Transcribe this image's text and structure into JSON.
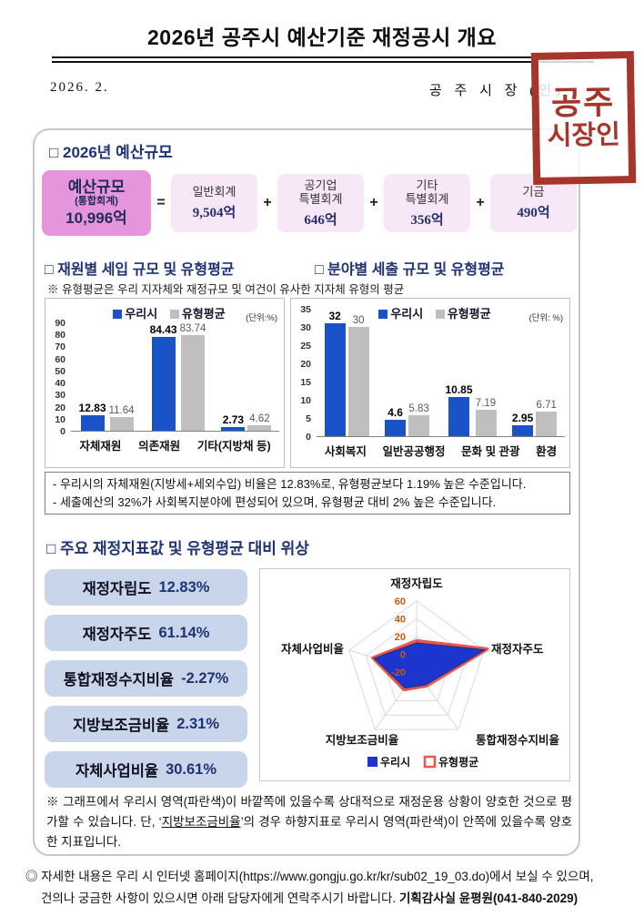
{
  "page": {
    "title": "2026년 공주시 예산기준 재정공시 개요",
    "date": "2026. 2.",
    "signature": "공 주 시 장 (인)",
    "stamp_line1": "공주",
    "stamp_line2": "시장인"
  },
  "budget": {
    "heading": "□ 2026년 예산규모",
    "total": {
      "title": "예산규모",
      "subtitle": "(통합회계)",
      "value": "10,996억"
    },
    "equals": "=",
    "plus": "+",
    "items": [
      {
        "line1": "일반회계",
        "line2": "",
        "value": "9,504억"
      },
      {
        "line1": "공기업",
        "line2": "특별회계",
        "value": "646억"
      },
      {
        "line1": "기타",
        "line2": "특별회계",
        "value": "356억"
      },
      {
        "line1": "기금",
        "line2": "",
        "value": "490억"
      }
    ]
  },
  "charts_section": {
    "left_heading": "□ 재원별 세입 규모 및 유형평균",
    "right_heading": "□ 분야별 세출 규모 및 유형평균",
    "note": "※ 유형평균은 우리 지자체와 재정규모 및 여건이 유사한 지자체 유형의 평균",
    "legend": {
      "series1": "우리시",
      "series2": "유형평균"
    },
    "unit_left": "(단위:%)",
    "unit_right": "(단위: %)"
  },
  "chart_data": [
    {
      "type": "bar",
      "title": "재원별 세입 규모 및 유형평균",
      "categories": [
        "자체재원",
        "의존재원",
        "기타(지방채 등)"
      ],
      "series": [
        {
          "name": "우리시",
          "values": [
            12.83,
            84.43,
            2.73
          ]
        },
        {
          "name": "유형평균",
          "values": [
            11.64,
            83.74,
            4.62
          ]
        }
      ],
      "ylim": [
        0,
        90
      ],
      "ytick_step": 10,
      "unit": "%",
      "grid": false,
      "legend_position": "top"
    },
    {
      "type": "bar",
      "title": "분야별 세출 규모 및 유형평균",
      "categories": [
        "사회복지",
        "일반공공행정",
        "문화 및 관광",
        "환경"
      ],
      "series": [
        {
          "name": "우리시",
          "values": [
            32,
            4.6,
            10.85,
            2.95
          ]
        },
        {
          "name": "유형평균",
          "values": [
            30,
            5.83,
            7.19,
            6.71
          ]
        }
      ],
      "ylim": [
        0,
        35
      ],
      "ytick_step": 5,
      "unit": "%",
      "grid": false,
      "legend_position": "top"
    },
    {
      "type": "radar",
      "title": "주요 재정지표값 및 유형평균 대비 위상",
      "axes": [
        "재정자립도",
        "재정자주도",
        "통합재정수지비율",
        "지방보조금비율",
        "자체사업비율"
      ],
      "series": [
        {
          "name": "우리시",
          "values": [
            12.83,
            61.14,
            -2.27,
            2.31,
            30.61
          ]
        },
        {
          "name": "유형평균",
          "values": [
            15,
            63.5,
            -1,
            4.2,
            31.5
          ],
          "estimated": true
        }
      ],
      "rlim": [
        -20,
        60
      ],
      "tick_step": 20,
      "tick_labels": [
        60,
        40,
        20,
        0,
        -20
      ]
    }
  ],
  "findings": {
    "line1": "- 우리시의 자체재원(지방세+세외수입) 비율은 12.83%로, 유형평균보다 1.19% 높은 수준입니다.",
    "line2": "- 세출예산의 32%가 사회복지분야에 편성되어 있으며, 유형평균 대비 2% 높은 수준입니다."
  },
  "indicators": {
    "heading": "□ 주요 재정지표값 및 유형평균 대비 위상",
    "items": [
      {
        "label": "재정자립도",
        "value": "12.83%"
      },
      {
        "label": "재정자주도",
        "value": "61.14%"
      },
      {
        "label": "통합재정수지비율",
        "value": "-2.27%"
      },
      {
        "label": "지방보조금비율",
        "value": "2.31%"
      },
      {
        "label": "자체사업비율",
        "value": "30.61%"
      }
    ]
  },
  "graph_note": {
    "part1": "※ 그래프에서 우리시 영역(파란색)이 바깥쪽에 있을수록 상대적으로 재정운용 상황이 양호한 것으로 평가할 수 있습니다. 단, ‘",
    "underlined": "지방보조금비율",
    "part2": "’의 경우 하향지표로 우리시 영역(파란색)이 안쪽에 있을수록 양호한 지표입니다."
  },
  "footer": {
    "line1": "◎ 자세한 내용은 우리 시 인터넷 홈페이지(https://www.gongju.go.kr/kr/sub02_19_03.do)에서 보실 수 있으며,",
    "line2_normal": "건의나 궁금한 사항이 있으시면 아래 담당자에게 연락주시기 바랍니다. ",
    "line2_bold": "기획감사실 윤평원(041-840-2029)"
  },
  "colors": {
    "heading_navy": "#1f3273",
    "bar_blue": "#1a53c8",
    "bar_gray": "#bfbfbf",
    "radar_fill_blue": "#1b35ce",
    "radar_outline_red": "#e8574f",
    "radar_tick_orange": "#c55a11",
    "stamp_red": "#a6352b",
    "budget_main_pink": "#e495dc",
    "budget_item_pink": "#f8e7f7",
    "indicator_blue": "#c9d5ea"
  }
}
